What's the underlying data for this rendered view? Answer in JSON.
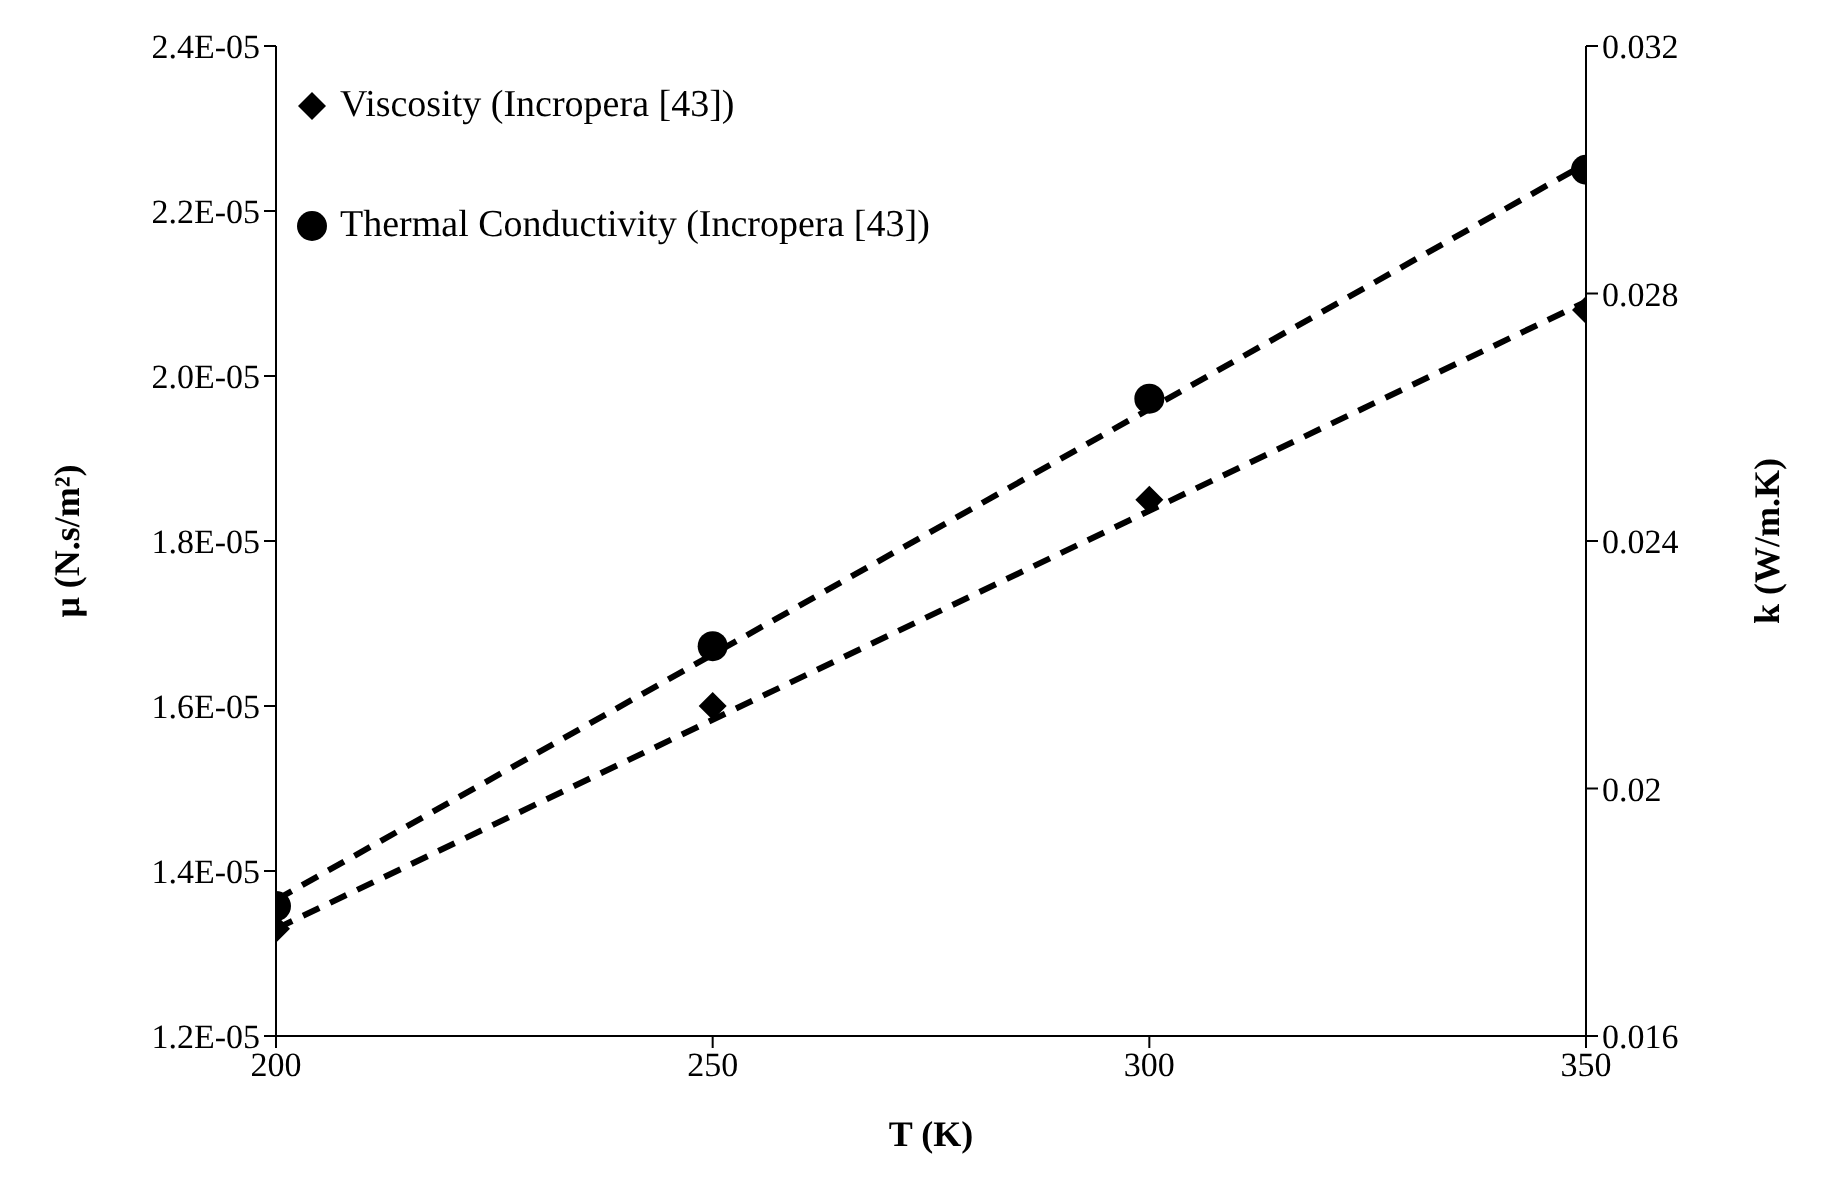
{
  "chart_data": {
    "type": "scatter",
    "xlabel": "T (K)",
    "ylabel": "μ (N.s/m²)",
    "y2label": "k (W/m.K)",
    "xlim": [
      200,
      350
    ],
    "xticks": [
      200,
      250,
      300,
      350
    ],
    "ylim": [
      1.2e-05,
      2.4e-05
    ],
    "yticks": [
      {
        "value": 1.2e-05,
        "label": "1.2E-05"
      },
      {
        "value": 1.4e-05,
        "label": "1.4E-05"
      },
      {
        "value": 1.6e-05,
        "label": "1.6E-05"
      },
      {
        "value": 1.8e-05,
        "label": "1.8E-05"
      },
      {
        "value": 2e-05,
        "label": "2.0E-05"
      },
      {
        "value": 2.2e-05,
        "label": "2.2E-05"
      },
      {
        "value": 2.4e-05,
        "label": "2.4E-05"
      }
    ],
    "y2lim": [
      0.016,
      0.032
    ],
    "y2ticks": [
      0.016,
      0.02,
      0.024,
      0.028,
      0.032
    ],
    "grid": false,
    "legend": "top left",
    "series": [
      {
        "name": "Viscosity (Incropera [43])",
        "marker": "diamond",
        "color": "#000000",
        "x": [
          200,
          250,
          300,
          350
        ],
        "values": [
          1.33e-05,
          1.6e-05,
          1.85e-05,
          2.08e-05
        ]
      },
      {
        "name": "Thermal Conductivity (Incropera [43])",
        "marker": "circle",
        "axis": "y2",
        "color": "#000000",
        "x": [
          200,
          250,
          300,
          350
        ],
        "values": [
          0.0181,
          0.0223,
          0.0263,
          0.03
        ]
      },
      {
        "type": "line",
        "line_style": "dashed",
        "marker": "none",
        "color": "#000000",
        "x": [
          200,
          350
        ],
        "values": [
          1.33e-05,
          2.09e-05
        ]
      },
      {
        "type": "line",
        "line_style": "dashed",
        "marker": "none",
        "axis": "y2",
        "color": "#000000",
        "x": [
          200,
          350
        ],
        "values": [
          0.0182,
          0.0301
        ]
      }
    ]
  }
}
